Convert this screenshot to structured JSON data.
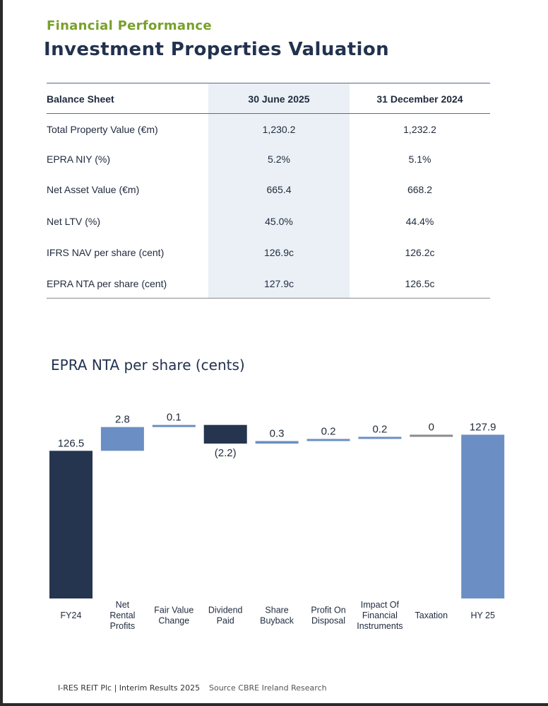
{
  "header": {
    "kicker": "Financial Performance",
    "title": "Investment Properties Valuation"
  },
  "balance_sheet": {
    "columns": [
      "Balance Sheet",
      "30 June 2025",
      "31 December 2024"
    ],
    "rows": [
      {
        "label": "Total Property Value (€m)",
        "v1": "1,230.2",
        "v2": "1,232.2"
      },
      {
        "label": "EPRA NIY (%)",
        "v1": "5.2%",
        "v2": "5.1%"
      },
      {
        "label": "Net Asset Value (€m)",
        "v1": "665.4",
        "v2": "668.2"
      },
      {
        "label": "Net LTV (%)",
        "v1": "45.0%",
        "v2": "44.4%"
      },
      {
        "label": "IFRS NAV per share (cent)",
        "v1": "126.9c",
        "v2": "126.2c"
      },
      {
        "label": "EPRA NTA per share (cent)",
        "v1": "127.9c",
        "v2": "126.5c"
      }
    ]
  },
  "colors": {
    "dark": "#25354f",
    "light": "#6b8fc4",
    "zero": "#8a8a8a"
  },
  "chart_data": {
    "type": "bar",
    "subtype": "waterfall",
    "title": "EPRA NTA per share (cents)",
    "categories": [
      [
        "FY24"
      ],
      [
        "Net",
        "Rental",
        "Profits"
      ],
      [
        "Fair Value",
        "Change"
      ],
      [
        "Dividend",
        "Paid"
      ],
      [
        "Share",
        "Buyback"
      ],
      [
        "Profit On",
        "Disposal"
      ],
      [
        "Impact Of",
        "Financial",
        "Instruments"
      ],
      [
        "Taxation"
      ],
      [
        "HY 25"
      ]
    ],
    "values": [
      126.5,
      2.8,
      0.1,
      -2.2,
      0.3,
      0.2,
      0.2,
      0,
      127.9
    ],
    "labels": [
      "126.5",
      "2.8",
      "0.1",
      "(2.2)",
      "0.3",
      "0.2",
      "0.2",
      "0",
      "127.9"
    ],
    "bar_kinds": [
      "total",
      "delta",
      "delta",
      "delta",
      "delta",
      "delta",
      "delta",
      "delta",
      "total"
    ],
    "bar_colors": [
      "dark",
      "light",
      "light",
      "dark",
      "light",
      "light",
      "light",
      "zero",
      "light"
    ]
  },
  "footer": {
    "company": "I-RES REIT Plc | Interim Results 2025",
    "source": "Source CBRE Ireland Research"
  }
}
